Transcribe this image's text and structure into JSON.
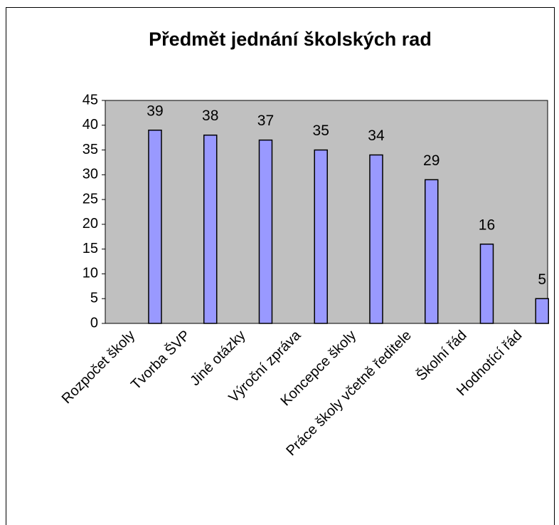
{
  "chart_data": {
    "type": "bar",
    "title": "Předmět jednání školských rad",
    "categories": [
      "Rozpočet školy",
      "Tvorba ŠVP",
      "Jiné otázky",
      "Výroční zpráva",
      "Koncepce školy",
      "Práce školy včetně ředitele",
      "Školní řád",
      "Hodnotící řád"
    ],
    "values": [
      39,
      38,
      37,
      35,
      34,
      29,
      16,
      5
    ],
    "color": "#9999ff",
    "plot_background": "#c0c0c0",
    "ylim": [
      0,
      45
    ],
    "yticks": [
      0,
      5,
      10,
      15,
      20,
      25,
      30,
      35,
      40,
      45
    ],
    "grid": false
  }
}
